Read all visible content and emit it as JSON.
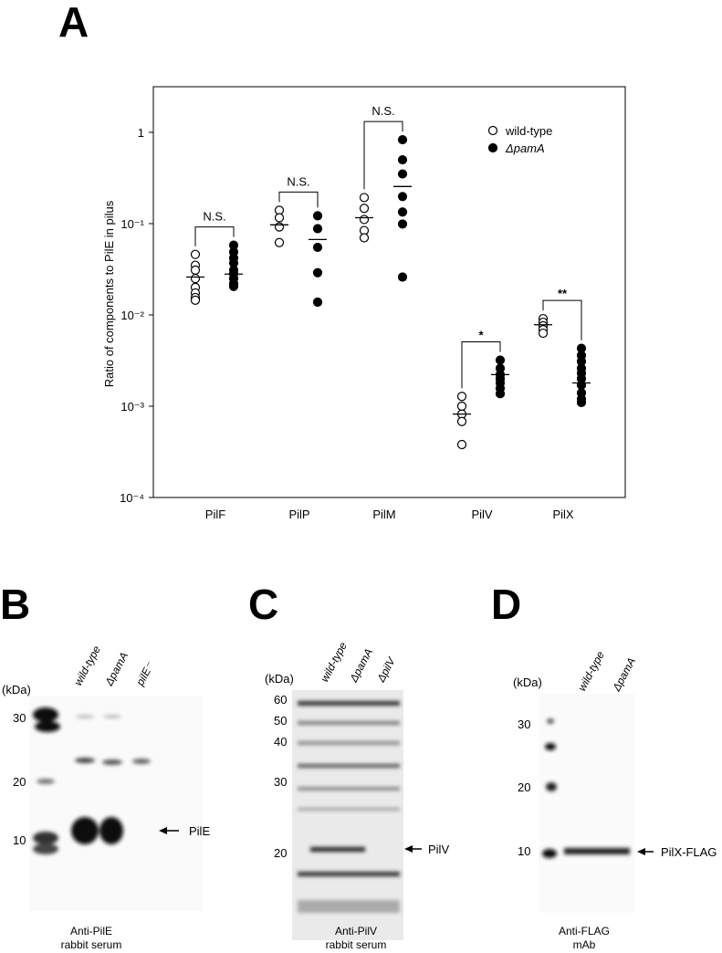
{
  "chart_data": {
    "type": "scatter",
    "panel": "A",
    "y_label": "Ratio of components to PilE in pilus",
    "categories": [
      "PilF",
      "PilP",
      "PilM",
      "PilV",
      "PilX"
    ],
    "log_y": true,
    "ylim": [
      0.0001,
      3.16
    ],
    "yticks": [
      1,
      {
        "value": 0.1,
        "label": "10⁻¹"
      },
      {
        "value": 0.01,
        "label": "10⁻²"
      },
      {
        "value": 0.001,
        "label": "10⁻³"
      },
      {
        "value": 0.0001,
        "label": "10⁻⁴"
      }
    ],
    "series": [
      {
        "name": "wild-type",
        "color": "#000000",
        "filled": false,
        "values": [
          [
            0.046,
            0.035,
            0.031,
            0.025,
            0.02,
            0.0174,
            0.0155,
            0.0145
          ],
          [
            0.14,
            0.116,
            0.092,
            0.062
          ],
          [
            0.193,
            0.147,
            0.111,
            0.084,
            0.07
          ],
          [
            0.00128,
            0.001,
            0.00082,
            0.00068,
            0.00038
          ],
          [
            0.0091,
            0.0083,
            0.0076,
            0.0069,
            0.0063
          ]
        ],
        "means": [
          0.026,
          0.097,
          0.116,
          0.00082,
          0.0078
        ]
      },
      {
        "name": "ΔpamA",
        "color": "#000000",
        "filled": true,
        "values": [
          [
            0.058,
            0.049,
            0.042,
            0.037,
            0.031,
            0.028,
            0.025,
            0.022,
            0.0205
          ],
          [
            0.122,
            0.088,
            0.055,
            0.029,
            0.0138
          ],
          [
            0.83,
            0.5,
            0.35,
            0.198,
            0.134,
            0.099,
            0.026
          ],
          [
            0.0032,
            0.0026,
            0.00222,
            0.002,
            0.0018,
            0.00157,
            0.00137
          ],
          [
            0.0043,
            0.0036,
            0.0031,
            0.0026,
            0.0023,
            0.002,
            0.0017,
            0.0014,
            0.0012,
            0.0011
          ]
        ],
        "means": [
          0.028,
          0.067,
          0.255,
          0.00222,
          0.0018
        ]
      }
    ],
    "annotations": [
      {
        "text": "N.S.",
        "category": 0
      },
      {
        "text": "N.S.",
        "category": 1
      },
      {
        "text": "N.S.",
        "category": 2
      },
      {
        "text": "*",
        "category": 3
      },
      {
        "text": "**",
        "category": 4
      }
    ]
  },
  "blots": [
    {
      "letter": "B",
      "kda": "(kDa)",
      "markers": [
        "30",
        "20",
        "10"
      ],
      "lanes": [
        "wild-type",
        "ΔpamA",
        "pilE⁻"
      ],
      "target": "PilE",
      "caption": [
        "Anti-PilE",
        "rabbit serum"
      ]
    },
    {
      "letter": "C",
      "kda": "(kDa)",
      "markers": [
        "60",
        "50",
        "40",
        "30",
        "20"
      ],
      "lanes": [
        "wild-type",
        "ΔpamA",
        "ΔpilV"
      ],
      "target": "PilV",
      "caption": [
        "Anti-PilV",
        "rabbit serum"
      ]
    },
    {
      "letter": "D",
      "kda": "(kDa)",
      "markers": [
        "30",
        "20",
        "10"
      ],
      "lanes": [
        "wild-type",
        "ΔpamA"
      ],
      "target": "PilX-FLAG",
      "caption": [
        "Anti-FLAG",
        "mAb"
      ]
    }
  ]
}
